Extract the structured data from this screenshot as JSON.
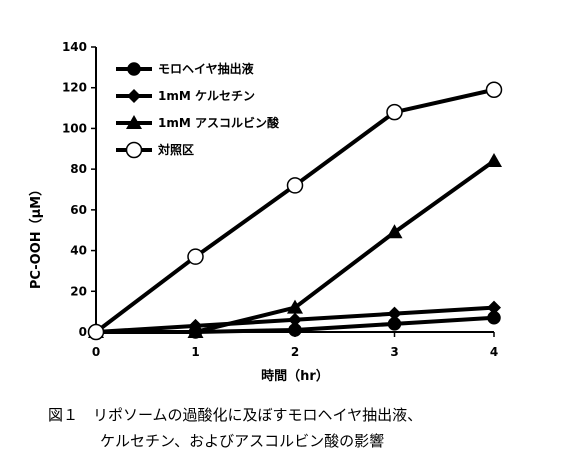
{
  "chart_data": {
    "type": "line",
    "x": [
      0,
      1,
      2,
      3,
      4
    ],
    "xticks": [
      "0",
      "1",
      "2",
      "3",
      "4"
    ],
    "yticks": [
      "0",
      "20",
      "40",
      "60",
      "80",
      "100",
      "120",
      "140"
    ],
    "xlabel": "時間（hr）",
    "ylabel": "PC-OOH（μM）",
    "xlim": [
      0,
      4
    ],
    "ylim": [
      0,
      140
    ],
    "grid": false,
    "legend_position": "top-left",
    "series": [
      {
        "name": "モロヘイヤ抽出液",
        "marker": "circle-filled",
        "values": [
          0,
          0,
          1,
          4,
          7
        ]
      },
      {
        "name": "1mM ケルセチン",
        "marker": "diamond-filled",
        "values": [
          0,
          3,
          6,
          9,
          12
        ]
      },
      {
        "name": "1mM アスコルビン酸",
        "marker": "triangle-filled",
        "values": [
          0,
          0,
          12,
          49,
          84
        ]
      },
      {
        "name": "対照区",
        "marker": "circle-open",
        "values": [
          0,
          37,
          72,
          108,
          119
        ]
      }
    ]
  },
  "caption": {
    "line1": "図１　リポソームの過酸化に及ぼすモロヘイヤ抽出液、",
    "line2": "ケルセチン、およびアスコルビン酸の影響"
  }
}
